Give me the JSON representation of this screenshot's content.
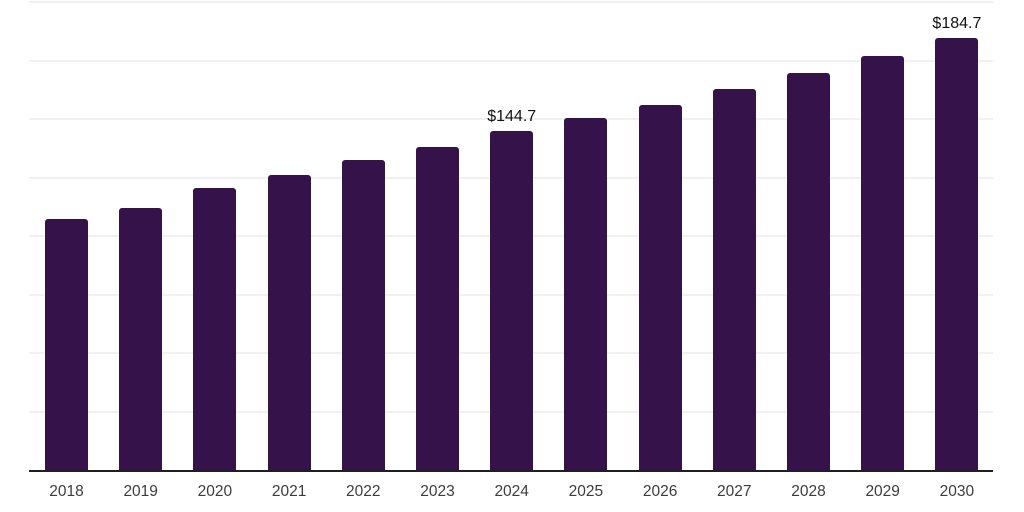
{
  "chart_data": {
    "type": "bar",
    "title": "",
    "xlabel": "",
    "ylabel": "",
    "categories": [
      "2018",
      "2019",
      "2020",
      "2021",
      "2022",
      "2023",
      "2024",
      "2025",
      "2026",
      "2027",
      "2028",
      "2029",
      "2030"
    ],
    "values": [
      107.4,
      112.0,
      120.6,
      126.2,
      132.4,
      138.0,
      144.7,
      150.3,
      156.2,
      163.0,
      169.8,
      177.0,
      184.7
    ],
    "value_labels": [
      {
        "category": "2024",
        "text": "$144.7"
      },
      {
        "category": "2030",
        "text": "$184.7"
      }
    ],
    "value_prefix": "$",
    "ylim": [
      0,
      200
    ],
    "gridline_step": 25,
    "grid": true,
    "legend": false,
    "bar_color": "#36124B",
    "gridline_color": "#f1f1f3",
    "axis_line_color": "#1f1f1f",
    "tick_label_color": "#3c3c3c",
    "value_label_color": "#111111"
  }
}
